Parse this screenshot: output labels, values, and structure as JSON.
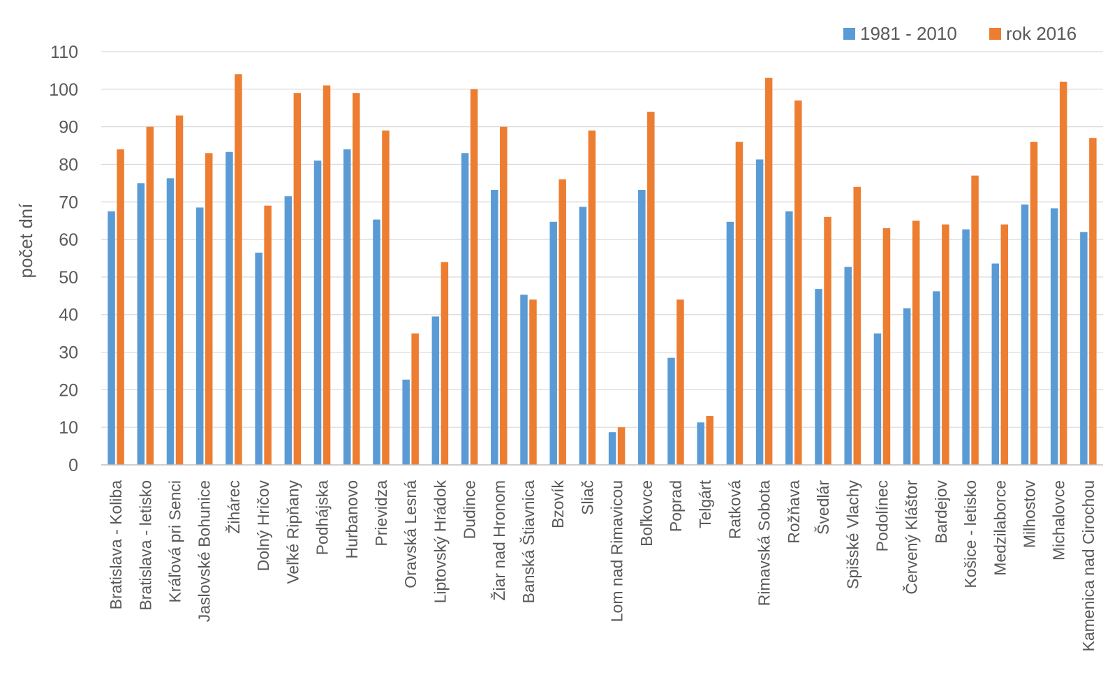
{
  "chart_data": {
    "type": "bar",
    "title": "",
    "xlabel": "",
    "ylabel": "počet dní",
    "ylim": [
      0,
      110
    ],
    "yticks": [
      0,
      10,
      20,
      30,
      40,
      50,
      60,
      70,
      80,
      90,
      100,
      110
    ],
    "grid": true,
    "legend_position": "top-right",
    "categories": [
      "Bratislava - Koliba",
      "Bratislava - letisko",
      "Kráľová pri Senci",
      "Jaslovské Bohunice",
      "Žihárec",
      "Dolný Hričov",
      "Veľké Ripňany",
      "Podhájska",
      "Hurbanovo",
      "Prievidza",
      "Oravská Lesná",
      "Liptovský Hrádok",
      "Dudince",
      "Žiar nad Hronom",
      "Banská Štiavnica",
      "Bzovík",
      "Sliač",
      "Lom nad Rimavicou",
      "Boľkovce",
      "Poprad",
      "Telgárt",
      "Ratková",
      "Rimavská Sobota",
      "Rožňava",
      "Švedlár",
      "Spišské Vlachy",
      "Podolínec",
      "Červený Kláštor",
      "Bardejov",
      "Košice - letisko",
      "Medzilaborce",
      "Milhostov",
      "Michalovce",
      "Kamenica nad Cirochou"
    ],
    "series": [
      {
        "name": "1981 - 2010",
        "color": "#5b9bd5",
        "values": [
          67.5,
          75,
          76.3,
          68.5,
          83.3,
          56.5,
          71.5,
          81,
          84,
          65.3,
          22.7,
          39.5,
          83,
          73.2,
          45.3,
          64.7,
          68.7,
          8.7,
          73.2,
          28.5,
          11.3,
          64.7,
          81.3,
          67.5,
          46.8,
          52.7,
          35,
          41.7,
          46.2,
          62.7,
          53.6,
          69.3,
          68.3,
          62
        ]
      },
      {
        "name": "rok 2016",
        "color": "#ed7d31",
        "values": [
          84,
          90,
          93,
          83,
          104,
          69,
          99,
          101,
          99,
          89,
          35,
          54,
          100,
          90,
          44,
          76,
          89,
          10,
          94,
          44,
          13,
          86,
          103,
          97,
          66,
          74,
          63,
          65,
          64,
          77,
          64,
          86,
          102,
          87
        ]
      }
    ]
  }
}
